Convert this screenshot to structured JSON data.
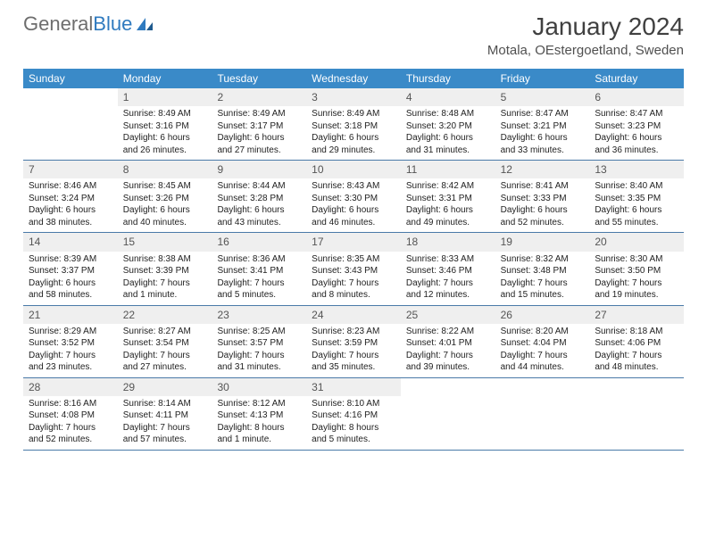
{
  "logo": {
    "text1": "General",
    "text2": "Blue"
  },
  "title": "January 2024",
  "location": "Motala, OEstergoetland, Sweden",
  "colors": {
    "header_bg": "#3a8ac8",
    "header_text": "#ffffff",
    "daynum_bg": "#efefef",
    "week_border": "#4a7aa8",
    "logo_gray": "#6d6d6d",
    "logo_blue": "#2f7abf"
  },
  "daysOfWeek": [
    "Sunday",
    "Monday",
    "Tuesday",
    "Wednesday",
    "Thursday",
    "Friday",
    "Saturday"
  ],
  "weeks": [
    [
      {
        "n": "",
        "sr": "",
        "ss": "",
        "dl": ""
      },
      {
        "n": "1",
        "sr": "Sunrise: 8:49 AM",
        "ss": "Sunset: 3:16 PM",
        "dl": "Daylight: 6 hours and 26 minutes."
      },
      {
        "n": "2",
        "sr": "Sunrise: 8:49 AM",
        "ss": "Sunset: 3:17 PM",
        "dl": "Daylight: 6 hours and 27 minutes."
      },
      {
        "n": "3",
        "sr": "Sunrise: 8:49 AM",
        "ss": "Sunset: 3:18 PM",
        "dl": "Daylight: 6 hours and 29 minutes."
      },
      {
        "n": "4",
        "sr": "Sunrise: 8:48 AM",
        "ss": "Sunset: 3:20 PM",
        "dl": "Daylight: 6 hours and 31 minutes."
      },
      {
        "n": "5",
        "sr": "Sunrise: 8:47 AM",
        "ss": "Sunset: 3:21 PM",
        "dl": "Daylight: 6 hours and 33 minutes."
      },
      {
        "n": "6",
        "sr": "Sunrise: 8:47 AM",
        "ss": "Sunset: 3:23 PM",
        "dl": "Daylight: 6 hours and 36 minutes."
      }
    ],
    [
      {
        "n": "7",
        "sr": "Sunrise: 8:46 AM",
        "ss": "Sunset: 3:24 PM",
        "dl": "Daylight: 6 hours and 38 minutes."
      },
      {
        "n": "8",
        "sr": "Sunrise: 8:45 AM",
        "ss": "Sunset: 3:26 PM",
        "dl": "Daylight: 6 hours and 40 minutes."
      },
      {
        "n": "9",
        "sr": "Sunrise: 8:44 AM",
        "ss": "Sunset: 3:28 PM",
        "dl": "Daylight: 6 hours and 43 minutes."
      },
      {
        "n": "10",
        "sr": "Sunrise: 8:43 AM",
        "ss": "Sunset: 3:30 PM",
        "dl": "Daylight: 6 hours and 46 minutes."
      },
      {
        "n": "11",
        "sr": "Sunrise: 8:42 AM",
        "ss": "Sunset: 3:31 PM",
        "dl": "Daylight: 6 hours and 49 minutes."
      },
      {
        "n": "12",
        "sr": "Sunrise: 8:41 AM",
        "ss": "Sunset: 3:33 PM",
        "dl": "Daylight: 6 hours and 52 minutes."
      },
      {
        "n": "13",
        "sr": "Sunrise: 8:40 AM",
        "ss": "Sunset: 3:35 PM",
        "dl": "Daylight: 6 hours and 55 minutes."
      }
    ],
    [
      {
        "n": "14",
        "sr": "Sunrise: 8:39 AM",
        "ss": "Sunset: 3:37 PM",
        "dl": "Daylight: 6 hours and 58 minutes."
      },
      {
        "n": "15",
        "sr": "Sunrise: 8:38 AM",
        "ss": "Sunset: 3:39 PM",
        "dl": "Daylight: 7 hours and 1 minute."
      },
      {
        "n": "16",
        "sr": "Sunrise: 8:36 AM",
        "ss": "Sunset: 3:41 PM",
        "dl": "Daylight: 7 hours and 5 minutes."
      },
      {
        "n": "17",
        "sr": "Sunrise: 8:35 AM",
        "ss": "Sunset: 3:43 PM",
        "dl": "Daylight: 7 hours and 8 minutes."
      },
      {
        "n": "18",
        "sr": "Sunrise: 8:33 AM",
        "ss": "Sunset: 3:46 PM",
        "dl": "Daylight: 7 hours and 12 minutes."
      },
      {
        "n": "19",
        "sr": "Sunrise: 8:32 AM",
        "ss": "Sunset: 3:48 PM",
        "dl": "Daylight: 7 hours and 15 minutes."
      },
      {
        "n": "20",
        "sr": "Sunrise: 8:30 AM",
        "ss": "Sunset: 3:50 PM",
        "dl": "Daylight: 7 hours and 19 minutes."
      }
    ],
    [
      {
        "n": "21",
        "sr": "Sunrise: 8:29 AM",
        "ss": "Sunset: 3:52 PM",
        "dl": "Daylight: 7 hours and 23 minutes."
      },
      {
        "n": "22",
        "sr": "Sunrise: 8:27 AM",
        "ss": "Sunset: 3:54 PM",
        "dl": "Daylight: 7 hours and 27 minutes."
      },
      {
        "n": "23",
        "sr": "Sunrise: 8:25 AM",
        "ss": "Sunset: 3:57 PM",
        "dl": "Daylight: 7 hours and 31 minutes."
      },
      {
        "n": "24",
        "sr": "Sunrise: 8:23 AM",
        "ss": "Sunset: 3:59 PM",
        "dl": "Daylight: 7 hours and 35 minutes."
      },
      {
        "n": "25",
        "sr": "Sunrise: 8:22 AM",
        "ss": "Sunset: 4:01 PM",
        "dl": "Daylight: 7 hours and 39 minutes."
      },
      {
        "n": "26",
        "sr": "Sunrise: 8:20 AM",
        "ss": "Sunset: 4:04 PM",
        "dl": "Daylight: 7 hours and 44 minutes."
      },
      {
        "n": "27",
        "sr": "Sunrise: 8:18 AM",
        "ss": "Sunset: 4:06 PM",
        "dl": "Daylight: 7 hours and 48 minutes."
      }
    ],
    [
      {
        "n": "28",
        "sr": "Sunrise: 8:16 AM",
        "ss": "Sunset: 4:08 PM",
        "dl": "Daylight: 7 hours and 52 minutes."
      },
      {
        "n": "29",
        "sr": "Sunrise: 8:14 AM",
        "ss": "Sunset: 4:11 PM",
        "dl": "Daylight: 7 hours and 57 minutes."
      },
      {
        "n": "30",
        "sr": "Sunrise: 8:12 AM",
        "ss": "Sunset: 4:13 PM",
        "dl": "Daylight: 8 hours and 1 minute."
      },
      {
        "n": "31",
        "sr": "Sunrise: 8:10 AM",
        "ss": "Sunset: 4:16 PM",
        "dl": "Daylight: 8 hours and 5 minutes."
      },
      {
        "n": "",
        "sr": "",
        "ss": "",
        "dl": ""
      },
      {
        "n": "",
        "sr": "",
        "ss": "",
        "dl": ""
      },
      {
        "n": "",
        "sr": "",
        "ss": "",
        "dl": ""
      }
    ]
  ]
}
